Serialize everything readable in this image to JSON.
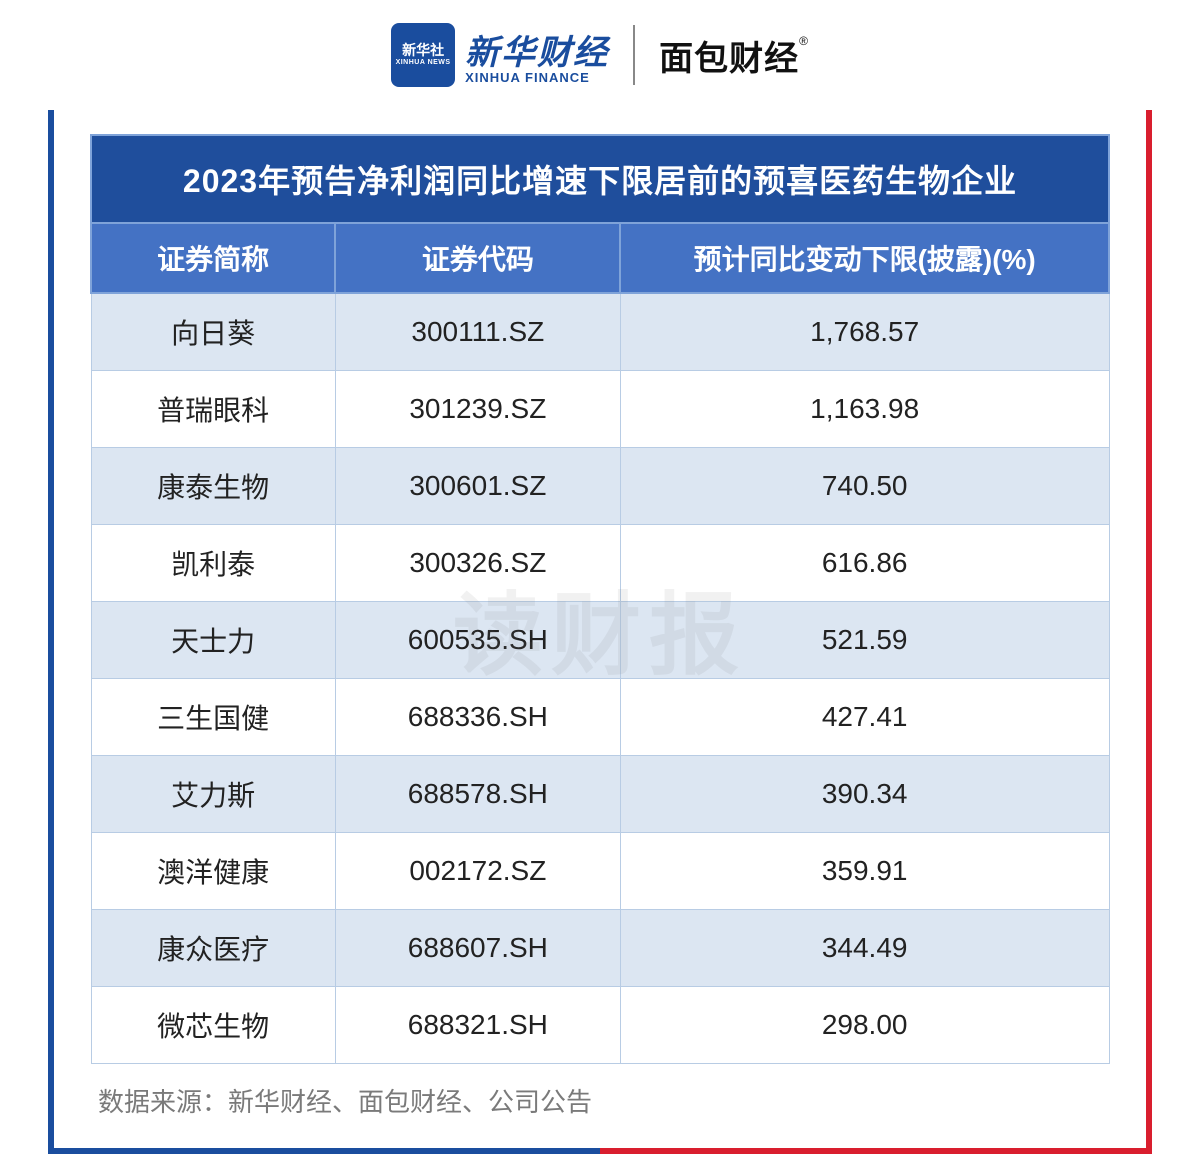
{
  "logos": {
    "xinhua_badge_cn": "新华社",
    "xinhua_badge_en": "XINHUA NEWS",
    "xinhua_cn": "新华财经",
    "xinhua_en": "XINHUA FINANCE",
    "mianbao": "面包财经",
    "registered": "®"
  },
  "table": {
    "type": "table",
    "title": "2023年预告净利润同比增速下限居前的预喜医药生物企业",
    "columns": [
      "证券简称",
      "证券代码",
      "预计同比变动下限(披露)(%)"
    ],
    "rows": [
      [
        "向日葵",
        "300111.SZ",
        "1,768.57"
      ],
      [
        "普瑞眼科",
        "301239.SZ",
        "1,163.98"
      ],
      [
        "康泰生物",
        "300601.SZ",
        "740.50"
      ],
      [
        "凯利泰",
        "300326.SZ",
        "616.86"
      ],
      [
        "天士力",
        "600535.SH",
        "521.59"
      ],
      [
        "三生国健",
        "688336.SH",
        "427.41"
      ],
      [
        "艾力斯",
        "688578.SH",
        "390.34"
      ],
      [
        "澳洋健康",
        "002172.SZ",
        "359.91"
      ],
      [
        "康众医疗",
        "688607.SH",
        "344.49"
      ],
      [
        "微芯生物",
        "688321.SH",
        "298.00"
      ]
    ],
    "footnote": "数据来源：新华财经、面包财经、公司公告",
    "colors": {
      "title_bg": "#1f4e9c",
      "title_text": "#ffffff",
      "header_bg": "#4472c4",
      "header_text": "#ffffff",
      "row_odd_bg": "#dce6f2",
      "row_even_bg": "#ffffff",
      "border": "#7fa3d9",
      "footnote_text": "#7a7a7a",
      "frame_left": "#1a4d9e",
      "frame_right": "#d91e2e"
    },
    "font": {
      "title_size_pt": 24,
      "header_size_pt": 21,
      "cell_size_pt": 21,
      "footnote_size_pt": 20,
      "family": "PingFang SC / Microsoft YaHei"
    },
    "col_widths_pct": [
      24,
      28,
      48
    ],
    "watermark": "读财报"
  }
}
